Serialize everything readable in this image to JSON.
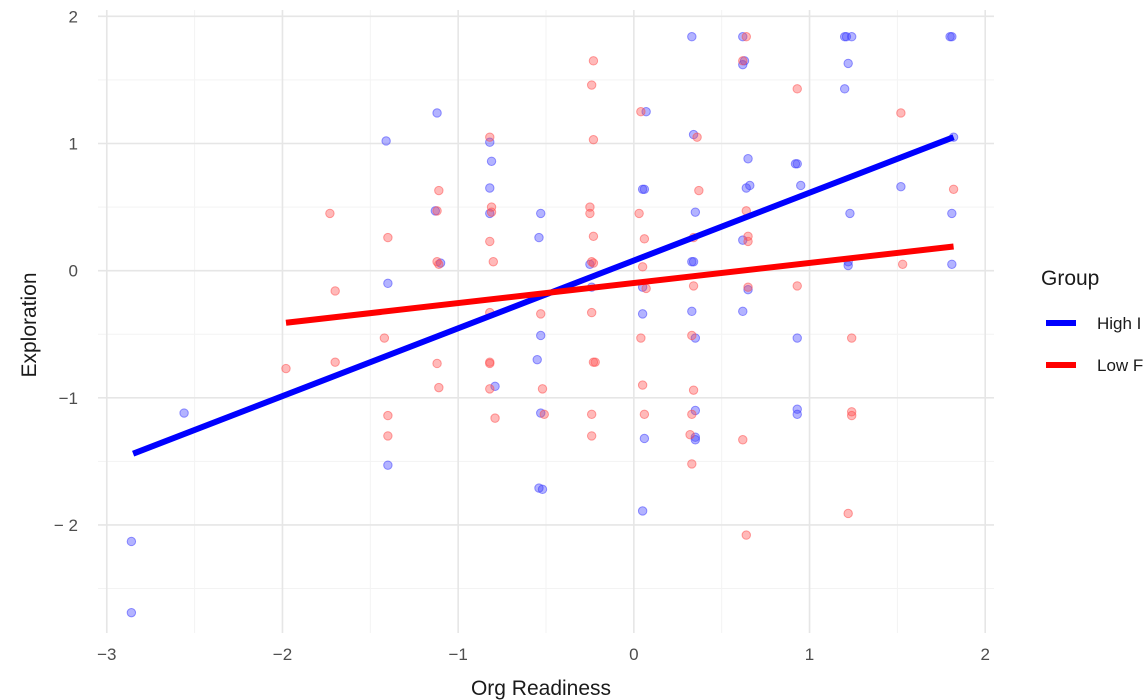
{
  "chart_data": {
    "type": "scatter",
    "xlabel": "Org Readiness",
    "ylabel": "Exploration",
    "xlim": [
      -3.05,
      2.05
    ],
    "ylim": [
      -2.85,
      2.05
    ],
    "x_ticks": [
      -3,
      -2,
      -1,
      0,
      1,
      2
    ],
    "y_ticks": [
      -2,
      -1,
      0,
      1,
      2
    ],
    "x_tick_labels": [
      "−3",
      "−2",
      "−1",
      "0",
      "1",
      "2"
    ],
    "y_tick_labels": [
      "− 2",
      "−1",
      "0",
      "1",
      "2"
    ],
    "grid": true,
    "legend": {
      "title": "Group",
      "position": "right"
    },
    "series": [
      {
        "name": "High I",
        "color": "#0000ff",
        "point_color": "#4040ff",
        "line": {
          "x": [
            -2.85,
            1.82
          ],
          "y": [
            -1.44,
            1.05
          ]
        },
        "points": [
          [
            -2.86,
            -2.13
          ],
          [
            -2.86,
            -2.69
          ],
          [
            -2.56,
            -1.12
          ],
          [
            -1.41,
            1.02
          ],
          [
            -1.4,
            -0.1
          ],
          [
            -1.4,
            -1.53
          ],
          [
            -1.12,
            1.24
          ],
          [
            -1.13,
            0.47
          ],
          [
            -1.1,
            0.06
          ],
          [
            -0.82,
            1.01
          ],
          [
            -0.82,
            0.65
          ],
          [
            -0.81,
            0.86
          ],
          [
            -0.82,
            0.45
          ],
          [
            -0.79,
            -0.91
          ],
          [
            -0.53,
            0.45
          ],
          [
            -0.54,
            0.26
          ],
          [
            -0.53,
            -0.51
          ],
          [
            -0.55,
            -0.7
          ],
          [
            -0.53,
            -1.12
          ],
          [
            -0.52,
            -1.72
          ],
          [
            -0.54,
            -1.71
          ],
          [
            -0.25,
            0.05
          ],
          [
            -0.24,
            -0.13
          ],
          [
            0.05,
            0.64
          ],
          [
            0.06,
            0.64
          ],
          [
            0.05,
            -0.13
          ],
          [
            0.05,
            -0.34
          ],
          [
            0.07,
            1.25
          ],
          [
            0.06,
            -1.32
          ],
          [
            0.05,
            -1.89
          ],
          [
            0.33,
            1.84
          ],
          [
            0.34,
            1.07
          ],
          [
            0.35,
            0.46
          ],
          [
            0.33,
            0.07
          ],
          [
            0.34,
            0.07
          ],
          [
            0.33,
            -0.32
          ],
          [
            0.35,
            -0.53
          ],
          [
            0.35,
            -1.1
          ],
          [
            0.35,
            -1.31
          ],
          [
            0.35,
            -1.33
          ],
          [
            0.62,
            1.84
          ],
          [
            0.63,
            1.65
          ],
          [
            0.62,
            1.62
          ],
          [
            0.65,
            0.88
          ],
          [
            0.64,
            0.65
          ],
          [
            0.66,
            0.67
          ],
          [
            0.62,
            0.24
          ],
          [
            0.65,
            -0.15
          ],
          [
            0.62,
            -0.32
          ],
          [
            0.92,
            0.84
          ],
          [
            0.93,
            0.84
          ],
          [
            0.95,
            0.67
          ],
          [
            0.93,
            -0.53
          ],
          [
            0.93,
            -1.09
          ],
          [
            0.93,
            -1.13
          ],
          [
            1.2,
            1.84
          ],
          [
            1.21,
            1.84
          ],
          [
            1.24,
            1.84
          ],
          [
            1.22,
            1.63
          ],
          [
            1.2,
            1.43
          ],
          [
            1.23,
            0.45
          ],
          [
            1.22,
            0.07
          ],
          [
            1.22,
            0.04
          ],
          [
            1.52,
            0.66
          ],
          [
            1.8,
            1.84
          ],
          [
            1.81,
            1.84
          ],
          [
            1.82,
            1.05
          ],
          [
            1.81,
            0.45
          ],
          [
            1.81,
            0.05
          ]
        ]
      },
      {
        "name": "Low F",
        "color": "#ff0000",
        "point_color": "#ff5050",
        "line": {
          "x": [
            -1.98,
            1.82
          ],
          "y": [
            -0.41,
            0.19
          ]
        },
        "points": [
          [
            -1.98,
            -0.77
          ],
          [
            -1.73,
            0.45
          ],
          [
            -1.7,
            -0.16
          ],
          [
            -1.7,
            -0.72
          ],
          [
            -1.42,
            -0.53
          ],
          [
            -1.4,
            0.26
          ],
          [
            -1.4,
            -1.14
          ],
          [
            -1.4,
            -1.3
          ],
          [
            -1.11,
            0.63
          ],
          [
            -1.12,
            0.47
          ],
          [
            -1.12,
            0.07
          ],
          [
            -1.11,
            0.05
          ],
          [
            -1.12,
            -0.73
          ],
          [
            -1.11,
            -0.92
          ],
          [
            -0.82,
            1.05
          ],
          [
            -0.81,
            0.5
          ],
          [
            -0.81,
            0.46
          ],
          [
            -0.82,
            0.23
          ],
          [
            -0.8,
            0.07
          ],
          [
            -0.82,
            -0.33
          ],
          [
            -0.82,
            -0.72
          ],
          [
            -0.82,
            -0.73
          ],
          [
            -0.82,
            -0.93
          ],
          [
            -0.79,
            -1.16
          ],
          [
            -0.53,
            -0.34
          ],
          [
            -0.52,
            -0.93
          ],
          [
            -0.51,
            -1.13
          ],
          [
            -0.23,
            1.65
          ],
          [
            -0.24,
            1.46
          ],
          [
            -0.23,
            1.03
          ],
          [
            -0.25,
            0.5
          ],
          [
            -0.25,
            0.45
          ],
          [
            -0.23,
            0.27
          ],
          [
            -0.24,
            0.07
          ],
          [
            -0.23,
            0.06
          ],
          [
            -0.24,
            -0.33
          ],
          [
            -0.22,
            -0.72
          ],
          [
            -0.23,
            -0.72
          ],
          [
            -0.24,
            -1.13
          ],
          [
            -0.24,
            -1.3
          ],
          [
            0.04,
            1.25
          ],
          [
            0.03,
            0.45
          ],
          [
            0.06,
            0.25
          ],
          [
            0.05,
            0.03
          ],
          [
            0.07,
            -0.14
          ],
          [
            0.04,
            -0.53
          ],
          [
            0.05,
            -0.9
          ],
          [
            0.06,
            -1.13
          ],
          [
            0.36,
            1.05
          ],
          [
            0.37,
            0.63
          ],
          [
            0.34,
            0.26
          ],
          [
            0.34,
            -0.12
          ],
          [
            0.33,
            -0.51
          ],
          [
            0.34,
            -0.94
          ],
          [
            0.33,
            -1.13
          ],
          [
            0.32,
            -1.29
          ],
          [
            0.33,
            -1.52
          ],
          [
            0.64,
            1.84
          ],
          [
            0.62,
            1.65
          ],
          [
            0.64,
            0.47
          ],
          [
            0.65,
            0.27
          ],
          [
            0.65,
            0.23
          ],
          [
            0.65,
            -0.13
          ],
          [
            0.62,
            -1.33
          ],
          [
            0.64,
            -2.08
          ],
          [
            0.93,
            1.43
          ],
          [
            0.93,
            -0.12
          ],
          [
            1.24,
            -0.53
          ],
          [
            1.24,
            -1.11
          ],
          [
            1.24,
            -1.14
          ],
          [
            1.22,
            -1.91
          ],
          [
            1.52,
            1.24
          ],
          [
            1.53,
            0.05
          ],
          [
            1.82,
            0.64
          ]
        ]
      }
    ]
  }
}
